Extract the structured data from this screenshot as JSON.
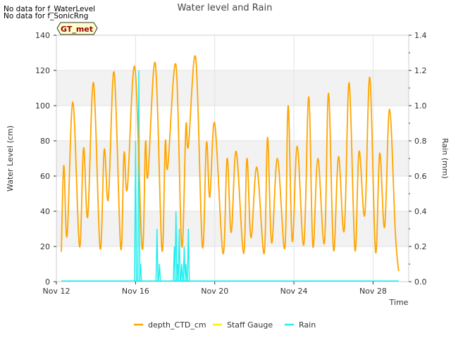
{
  "notices": [
    "No data for f_WaterLevel",
    "No data for f_SonicRng"
  ],
  "chart_data": {
    "type": "line",
    "title": "Water level and Rain",
    "xlabel": "Time",
    "ylabel_left": "Water Level (cm)",
    "ylabel_right": "Rain (mm)",
    "badge": "GT_met",
    "ylim_left": [
      0,
      140
    ],
    "ylim_right": [
      0,
      1.4
    ],
    "xlim_days": [
      "2023-11-12",
      "2023-11-29.8"
    ],
    "x_tick_labels": [
      "Nov 12",
      "Nov 16",
      "Nov 20",
      "Nov 24",
      "Nov 28"
    ],
    "y_ticks_left": [
      "0",
      "20",
      "40",
      "60",
      "80",
      "100",
      "120",
      "140"
    ],
    "y_ticks_right": [
      "0.0",
      "0.2",
      "0.4",
      "0.6",
      "0.8",
      "1.0",
      "1.2",
      "1.4"
    ],
    "legend_position": "bottom",
    "legend": [
      {
        "name": "depth_CTD_cm",
        "color": "#FFA500"
      },
      {
        "name": "Staff Gauge",
        "color": "#FFEE00"
      },
      {
        "name": "Rain",
        "color": "#22EEEE"
      }
    ],
    "series": [
      {
        "name": "depth_CTD_cm",
        "axis": "left",
        "points": [
          [
            "Nov 12 06:00",
            17
          ],
          [
            "Nov 12 09:00",
            66
          ],
          [
            "Nov 12 13:00",
            26
          ],
          [
            "Nov 12 20:00",
            102
          ],
          [
            "Nov 13 04:00",
            20
          ],
          [
            "Nov 13 09:00",
            76
          ],
          [
            "Nov 13 14:00",
            37
          ],
          [
            "Nov 13 21:00",
            113
          ],
          [
            "Nov 14 05:00",
            19
          ],
          [
            "Nov 14 10:00",
            75
          ],
          [
            "Nov 14 15:00",
            47
          ],
          [
            "Nov 14 22:00",
            119
          ],
          [
            "Nov 15 06:00",
            19
          ],
          [
            "Nov 15 10:00",
            73
          ],
          [
            "Nov 15 14:00",
            53
          ],
          [
            "Nov 15 23:00",
            122
          ],
          [
            "Nov 16 08:00",
            19
          ],
          [
            "Nov 16 12:00",
            79
          ],
          [
            "Nov 16 15:00",
            60
          ],
          [
            "Nov 17 00:00",
            124
          ],
          [
            "Nov 17 08:00",
            18
          ],
          [
            "Nov 17 12:00",
            79
          ],
          [
            "Nov 17 15:00",
            65
          ],
          [
            "Nov 18 01:00",
            123
          ],
          [
            "Nov 18 08:00",
            20
          ],
          [
            "Nov 18 13:00",
            88
          ],
          [
            "Nov 18 16:00",
            77
          ],
          [
            "Nov 19 01:00",
            127
          ],
          [
            "Nov 19 09:00",
            20
          ],
          [
            "Nov 19 14:00",
            79
          ],
          [
            "Nov 19 18:00",
            48
          ],
          [
            "Nov 20 00:00",
            90
          ],
          [
            "Nov 20 10:00",
            16
          ],
          [
            "Nov 20 15:00",
            70
          ],
          [
            "Nov 20 20:00",
            28
          ],
          [
            "Nov 21 02:00",
            74
          ],
          [
            "Nov 21 11:00",
            16
          ],
          [
            "Nov 21 15:00",
            70
          ],
          [
            "Nov 21 20:00",
            25
          ],
          [
            "Nov 22 03:00",
            65
          ],
          [
            "Nov 22 12:00",
            16
          ],
          [
            "Nov 22 16:00",
            82
          ],
          [
            "Nov 22 21:00",
            22
          ],
          [
            "Nov 23 04:00",
            70
          ],
          [
            "Nov 23 13:00",
            19
          ],
          [
            "Nov 23 17:00",
            100
          ],
          [
            "Nov 23 22:00",
            23
          ],
          [
            "Nov 24 04:00",
            77
          ],
          [
            "Nov 24 12:00",
            21
          ],
          [
            "Nov 24 18:00",
            105
          ],
          [
            "Nov 24 23:00",
            20
          ],
          [
            "Nov 25 05:00",
            70
          ],
          [
            "Nov 25 13:00",
            22
          ],
          [
            "Nov 25 18:00",
            107
          ],
          [
            "Nov 26 00:00",
            18
          ],
          [
            "Nov 26 06:00",
            71
          ],
          [
            "Nov 26 13:00",
            29
          ],
          [
            "Nov 26 19:00",
            113
          ],
          [
            "Nov 27 02:00",
            18
          ],
          [
            "Nov 27 07:00",
            74
          ],
          [
            "Nov 27 14:00",
            38
          ],
          [
            "Nov 27 20:00",
            116
          ],
          [
            "Nov 28 03:00",
            17
          ],
          [
            "Nov 28 08:00",
            73
          ],
          [
            "Nov 28 14:00",
            31
          ],
          [
            "Nov 28 20:00",
            98
          ],
          [
            "Nov 29 03:00",
            28
          ],
          [
            "Nov 29 07:00",
            6
          ]
        ]
      },
      {
        "name": "Staff Gauge",
        "axis": "left",
        "points": []
      },
      {
        "name": "Rain",
        "axis": "right",
        "baseline_range": [
          "Nov 12 06:00",
          "Nov 29 07:00"
        ],
        "spikes": [
          [
            "Nov 16 00:00",
            0.8
          ],
          [
            "Nov 16 04:00",
            1.2
          ],
          [
            "Nov 16 06:00",
            0.1
          ],
          [
            "Nov 17 02:00",
            0.3
          ],
          [
            "Nov 17 05:00",
            0.1
          ],
          [
            "Nov 17 23:00",
            0.2
          ],
          [
            "Nov 18 01:00",
            0.4
          ],
          [
            "Nov 18 03:00",
            0.1
          ],
          [
            "Nov 18 05:00",
            0.3
          ],
          [
            "Nov 18 08:00",
            0.1
          ],
          [
            "Nov 18 11:00",
            0.2
          ],
          [
            "Nov 18 13:00",
            0.1
          ],
          [
            "Nov 18 16:00",
            0.3
          ]
        ]
      }
    ]
  }
}
